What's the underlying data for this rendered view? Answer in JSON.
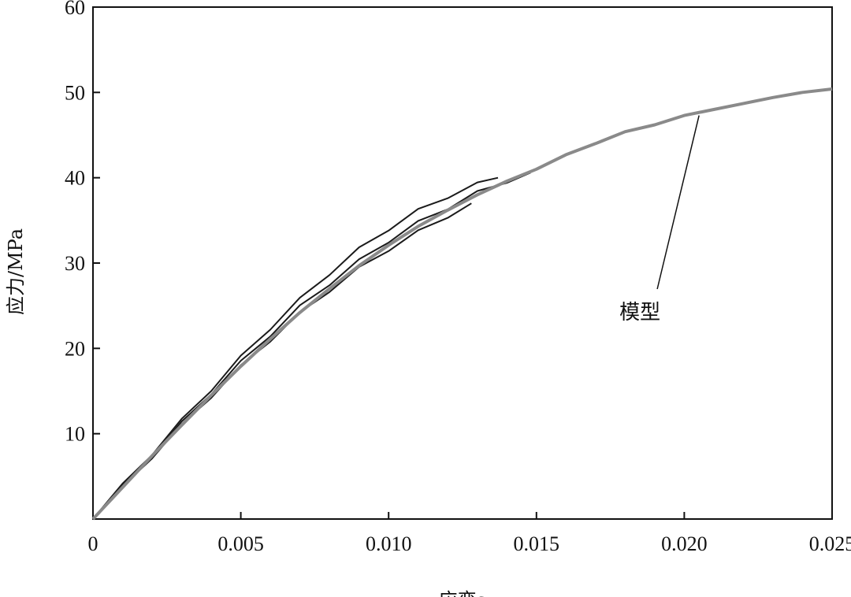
{
  "chart_data": {
    "type": "line",
    "xlabel": "应变ε",
    "ylabel": "应力/MPa",
    "xlim": [
      0,
      0.025
    ],
    "ylim": [
      0,
      60
    ],
    "x_ticks": [
      0,
      0.005,
      0.01,
      0.015,
      0.02,
      0.025
    ],
    "x_tick_labels": [
      "0",
      "0.005",
      "0.010",
      "0.015",
      "0.020",
      "0.025"
    ],
    "y_ticks": [
      10,
      20,
      30,
      40,
      50,
      60
    ],
    "y_tick_labels": [
      "10",
      "20",
      "30",
      "40",
      "50",
      "60"
    ],
    "grid": false,
    "colors": {
      "experiment": "#1a1a1a",
      "model": "#8a8a8a",
      "axis": "#111111"
    },
    "series": [
      {
        "role": "experiment",
        "x": [
          0,
          0.001,
          0.002,
          0.003,
          0.004,
          0.005,
          0.006,
          0.007,
          0.008,
          0.009,
          0.01,
          0.011,
          0.012,
          0.013,
          0.0137
        ],
        "y": [
          0,
          3.9,
          7.7,
          11.5,
          15.2,
          18.9,
          22.4,
          25.7,
          28.8,
          31.6,
          34.0,
          36.1,
          37.8,
          39.2,
          40.0
        ]
      },
      {
        "role": "experiment",
        "x": [
          0,
          0.001,
          0.002,
          0.003,
          0.004,
          0.005,
          0.006,
          0.007,
          0.008,
          0.009,
          0.01,
          0.011,
          0.012,
          0.0128
        ],
        "y": [
          0,
          3.6,
          7.3,
          10.9,
          14.4,
          17.8,
          21.0,
          24.0,
          26.8,
          29.3,
          31.6,
          33.6,
          35.5,
          37.0
        ]
      },
      {
        "role": "experiment",
        "x": [
          0,
          0.001,
          0.002,
          0.003,
          0.004,
          0.005,
          0.006,
          0.007,
          0.008,
          0.009,
          0.01,
          0.011,
          0.012,
          0.013,
          0.014,
          0.0148
        ],
        "y": [
          0,
          3.7,
          7.5,
          11.2,
          14.8,
          18.3,
          21.6,
          24.8,
          27.6,
          30.2,
          32.6,
          34.7,
          36.5,
          38.2,
          39.6,
          40.6
        ]
      },
      {
        "role": "model",
        "x": [
          0,
          0.001,
          0.002,
          0.003,
          0.004,
          0.005,
          0.006,
          0.007,
          0.008,
          0.009,
          0.01,
          0.011,
          0.012,
          0.013,
          0.014,
          0.015,
          0.016,
          0.017,
          0.018,
          0.019,
          0.02,
          0.021,
          0.022,
          0.023,
          0.024,
          0.025
        ],
        "y": [
          0,
          3.7,
          7.4,
          11.0,
          14.5,
          17.9,
          21.1,
          24.2,
          27.0,
          29.7,
          32.1,
          34.3,
          36.2,
          38.0,
          39.6,
          41.0,
          42.7,
          44.0,
          45.4,
          46.2,
          47.3,
          48.0,
          48.7,
          49.4,
          50.0,
          50.4
        ]
      }
    ],
    "annotations": [
      {
        "text": "模型",
        "target_x": 0.0205,
        "target_y": 47.3,
        "text_x": 0.0185,
        "text_y": 24
      }
    ]
  }
}
